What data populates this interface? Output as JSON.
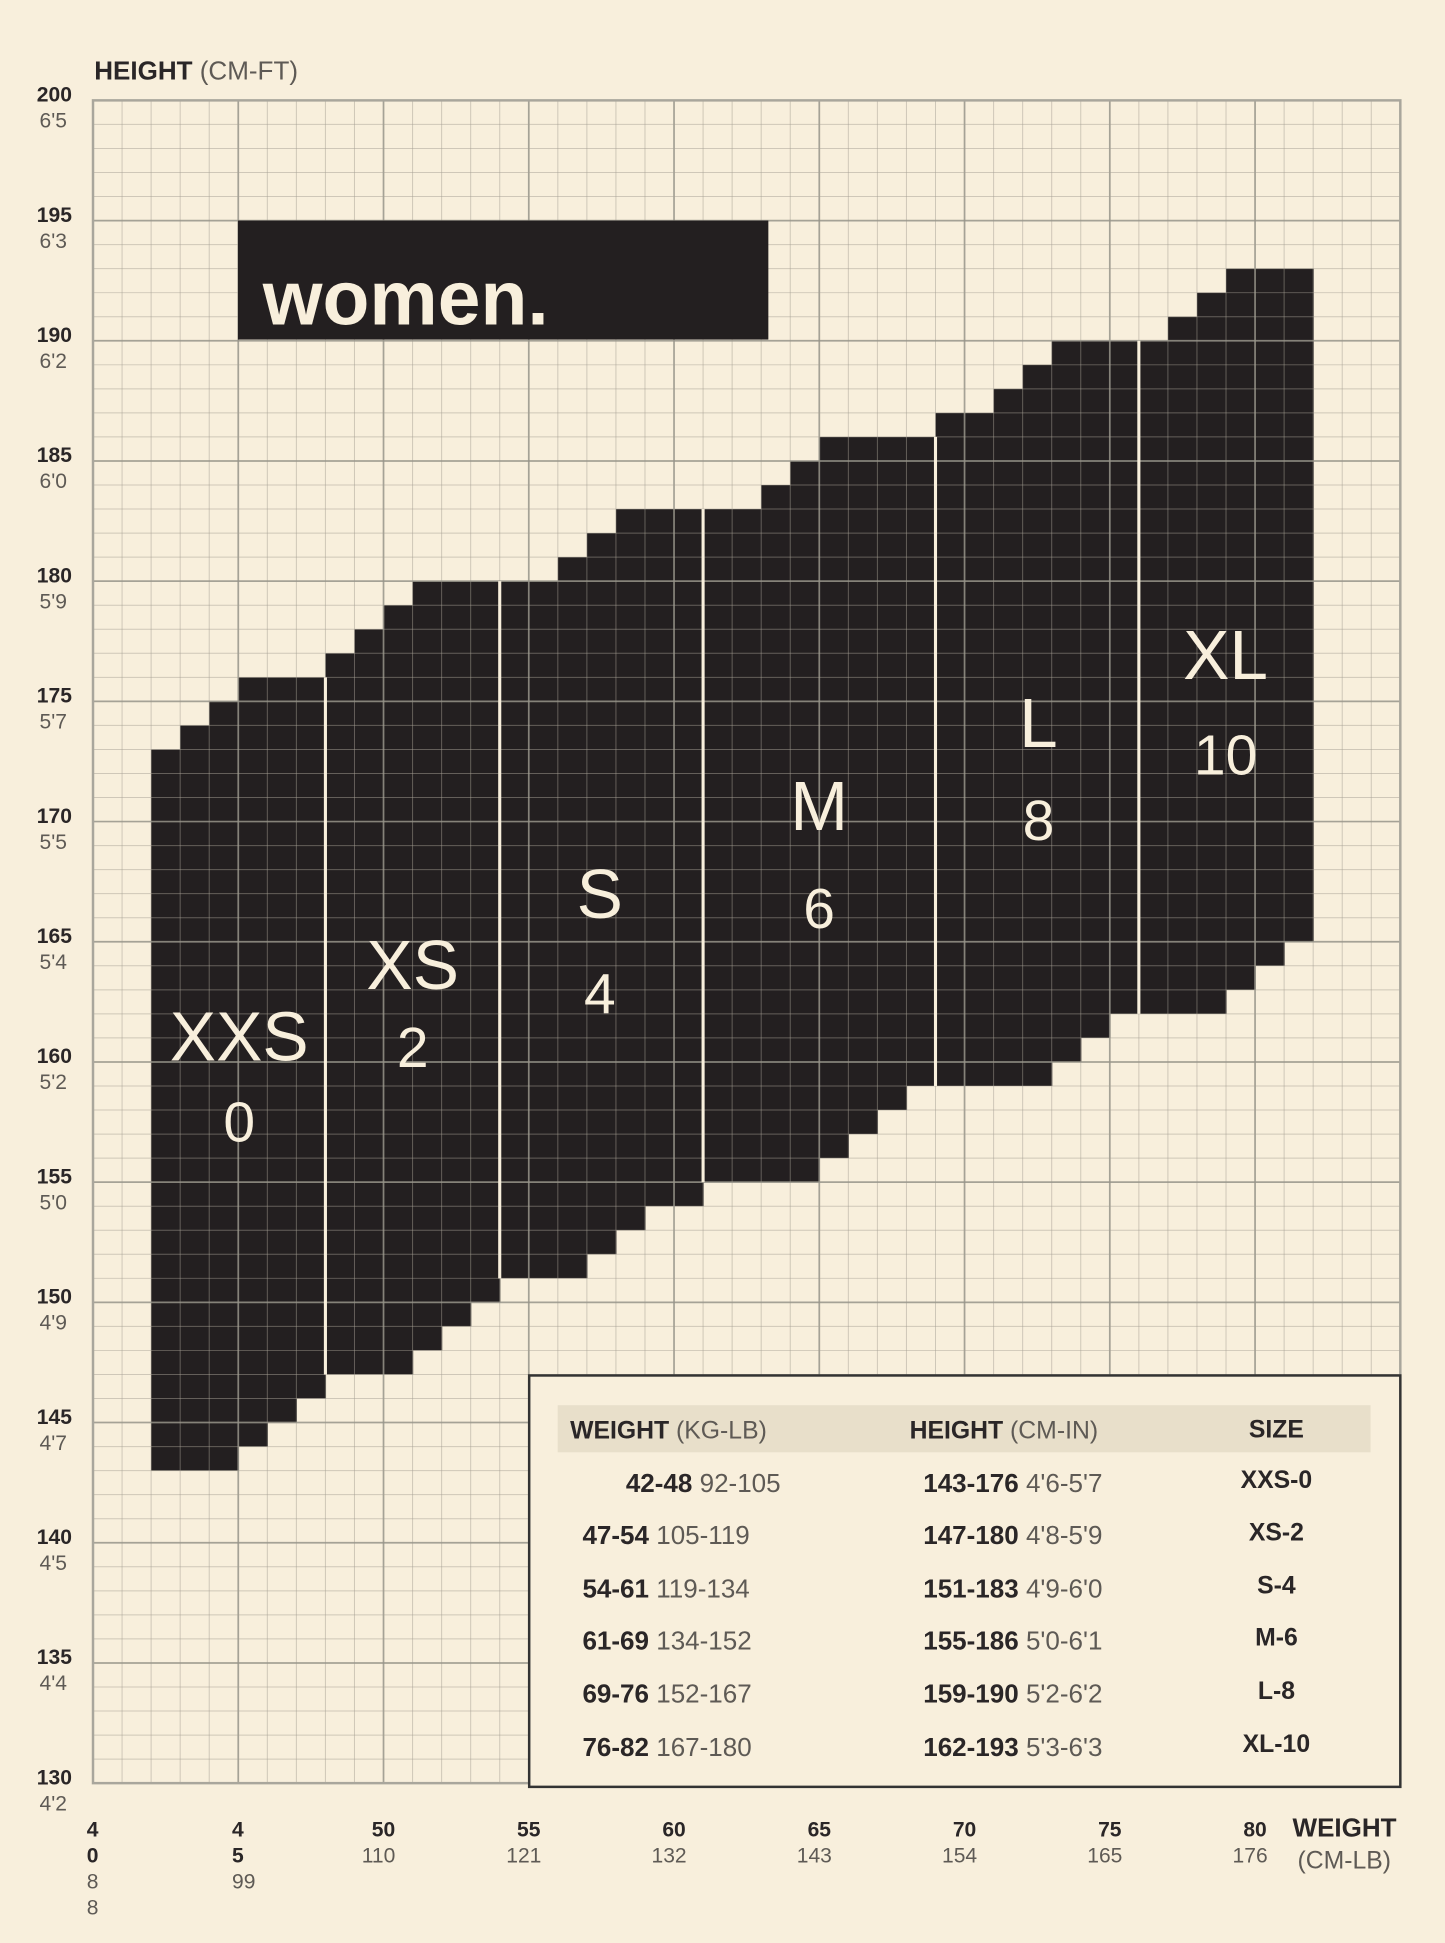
{
  "title": "women.",
  "colors": {
    "background": "#f8efdc",
    "region": "#231f20",
    "label": "#f8efdc",
    "grid": "#bdb8ab",
    "table_header": "#e8dfca"
  },
  "chart_data": {
    "type": "area",
    "ylabel": {
      "bold": "HEIGHT",
      "light": "(CM-FT)"
    },
    "xlabel": {
      "bold": "WEIGHT",
      "light": "(CM-LB)"
    },
    "xlim": [
      40,
      85
    ],
    "ylim": [
      130,
      200
    ],
    "grid": true,
    "x_ticks": [
      {
        "kg": "40",
        "lb": "88"
      },
      {
        "kg": "45",
        "lb": "99"
      },
      {
        "kg": "50",
        "lb": "110"
      },
      {
        "kg": "55",
        "lb": "121"
      },
      {
        "kg": "60",
        "lb": "132"
      },
      {
        "kg": "65",
        "lb": "143"
      },
      {
        "kg": "70",
        "lb": "154"
      },
      {
        "kg": "75",
        "lb": "165"
      },
      {
        "kg": "80",
        "lb": "176"
      }
    ],
    "y_ticks": [
      {
        "cm": "200",
        "ft": "6'5"
      },
      {
        "cm": "195",
        "ft": "6'3"
      },
      {
        "cm": "190",
        "ft": "6'2"
      },
      {
        "cm": "185",
        "ft": "6'0"
      },
      {
        "cm": "180",
        "ft": "5'9"
      },
      {
        "cm": "175",
        "ft": "5'7"
      },
      {
        "cm": "170",
        "ft": "5'5"
      },
      {
        "cm": "165",
        "ft": "5'4"
      },
      {
        "cm": "160",
        "ft": "5'2"
      },
      {
        "cm": "155",
        "ft": "5'0"
      },
      {
        "cm": "150",
        "ft": "4'9"
      },
      {
        "cm": "145",
        "ft": "4'7"
      },
      {
        "cm": "140",
        "ft": "4'5"
      },
      {
        "cm": "135",
        "ft": "4'4"
      },
      {
        "cm": "130",
        "ft": "4'2"
      }
    ],
    "series": [
      {
        "name": "XXS",
        "number": "0",
        "columns": [
          [
            42,
            143,
            173
          ],
          [
            43,
            143,
            174
          ],
          [
            44,
            143,
            175
          ],
          [
            45,
            144,
            176
          ],
          [
            46,
            145,
            176
          ],
          [
            47,
            146,
            176
          ]
        ]
      },
      {
        "name": "XS",
        "number": "2",
        "columns": [
          [
            48,
            147,
            177
          ],
          [
            49,
            147,
            178
          ],
          [
            50,
            147,
            179
          ],
          [
            51,
            148,
            180
          ],
          [
            52,
            149,
            180
          ],
          [
            53,
            150,
            180
          ]
        ]
      },
      {
        "name": "S",
        "number": "4",
        "columns": [
          [
            54,
            151,
            180
          ],
          [
            55,
            151,
            180
          ],
          [
            56,
            151,
            181
          ],
          [
            57,
            152,
            182
          ],
          [
            58,
            153,
            183
          ],
          [
            59,
            154,
            183
          ],
          [
            60,
            154,
            183
          ]
        ]
      },
      {
        "name": "M",
        "number": "6",
        "columns": [
          [
            61,
            155,
            183
          ],
          [
            62,
            155,
            183
          ],
          [
            63,
            155,
            184
          ],
          [
            64,
            155,
            185
          ],
          [
            65,
            156,
            186
          ],
          [
            66,
            157,
            186
          ],
          [
            67,
            158,
            186
          ],
          [
            68,
            159,
            186
          ]
        ]
      },
      {
        "name": "L",
        "number": "8",
        "columns": [
          [
            69,
            159,
            187
          ],
          [
            70,
            159,
            187
          ],
          [
            71,
            159,
            188
          ],
          [
            72,
            159,
            189
          ],
          [
            73,
            160,
            190
          ],
          [
            74,
            161,
            190
          ],
          [
            75,
            162,
            190
          ]
        ]
      },
      {
        "name": "XL",
        "number": "10",
        "columns": [
          [
            76,
            162,
            190
          ],
          [
            77,
            162,
            191
          ],
          [
            78,
            162,
            192
          ],
          [
            79,
            163,
            193
          ],
          [
            80,
            164,
            193
          ],
          [
            81,
            165,
            193
          ]
        ]
      }
    ]
  },
  "table": {
    "headers": [
      {
        "bold": "WEIGHT",
        "light": "(KG-LB)"
      },
      {
        "bold": "HEIGHT",
        "light": "(CM-IN)"
      },
      {
        "bold": "SIZE",
        "light": ""
      }
    ],
    "rows": [
      {
        "kg": "42-48",
        "lb": "92-105",
        "cm": "143-176",
        "ftin": "4'6-5'7",
        "size": "XXS-0"
      },
      {
        "kg": "47-54",
        "lb": "105-119",
        "cm": "147-180",
        "ftin": "4'8-5'9",
        "size": "XS-2"
      },
      {
        "kg": "54-61",
        "lb": "119-134",
        "cm": "151-183",
        "ftin": "4'9-6'0",
        "size": "S-4"
      },
      {
        "kg": "61-69",
        "lb": "134-152",
        "cm": "155-186",
        "ftin": "5'0-6'1",
        "size": "M-6"
      },
      {
        "kg": "69-76",
        "lb": "152-167",
        "cm": "159-190",
        "ftin": "5'2-6'2",
        "size": "L-8"
      },
      {
        "kg": "76-82",
        "lb": "167-180",
        "cm": "162-193",
        "ftin": "5'3-6'3",
        "size": "XL-10"
      }
    ]
  }
}
